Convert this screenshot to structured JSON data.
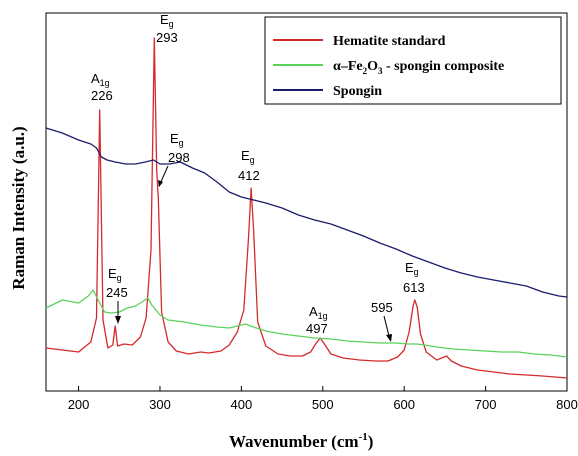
{
  "chart_data": {
    "type": "line",
    "xlabel": "Wavenumber (cm",
    "xlabel_sup": "-1",
    "xlabel_end": ")",
    "ylabel": "Raman Intensity (a.u.)",
    "xlim": [
      160,
      800
    ],
    "x_ticks": [
      "200",
      "300",
      "400",
      "500",
      "600",
      "700",
      "800"
    ],
    "legend_position": "top-right",
    "series": [
      {
        "name": "Hematite standard",
        "color": "#d42a2a",
        "points": [
          [
            160,
            348
          ],
          [
            200,
            352
          ],
          [
            215,
            342
          ],
          [
            222,
            318
          ],
          [
            226,
            110
          ],
          [
            230,
            320
          ],
          [
            236,
            348
          ],
          [
            242,
            345
          ],
          [
            245,
            326
          ],
          [
            248,
            346
          ],
          [
            256,
            344
          ],
          [
            266,
            345
          ],
          [
            276,
            337
          ],
          [
            283,
            318
          ],
          [
            289,
            250
          ],
          [
            293,
            38
          ],
          [
            296,
            170
          ],
          [
            298,
            198
          ],
          [
            302,
            312
          ],
          [
            310,
            342
          ],
          [
            320,
            351
          ],
          [
            335,
            354
          ],
          [
            350,
            352
          ],
          [
            360,
            353
          ],
          [
            375,
            351
          ],
          [
            385,
            345
          ],
          [
            395,
            332
          ],
          [
            403,
            310
          ],
          [
            409,
            235
          ],
          [
            412,
            188
          ],
          [
            415,
            230
          ],
          [
            420,
            322
          ],
          [
            430,
            346
          ],
          [
            445,
            354
          ],
          [
            460,
            356
          ],
          [
            475,
            356
          ],
          [
            485,
            352
          ],
          [
            492,
            343
          ],
          [
            497,
            338
          ],
          [
            502,
            344
          ],
          [
            510,
            354
          ],
          [
            525,
            358
          ],
          [
            545,
            360
          ],
          [
            565,
            361
          ],
          [
            580,
            361
          ],
          [
            592,
            357
          ],
          [
            600,
            350
          ],
          [
            606,
            332
          ],
          [
            611,
            306
          ],
          [
            613,
            300
          ],
          [
            616,
            307
          ],
          [
            620,
            334
          ],
          [
            627,
            352
          ],
          [
            640,
            360
          ],
          [
            652,
            356
          ],
          [
            658,
            361
          ],
          [
            670,
            366
          ],
          [
            690,
            370
          ],
          [
            710,
            372
          ],
          [
            730,
            374
          ],
          [
            750,
            375
          ],
          [
            770,
            376
          ],
          [
            800,
            378
          ]
        ]
      },
      {
        "name": "α–Fe2O3 - spongin composite",
        "name_parts": [
          "α–Fe",
          "2",
          "O",
          "3",
          " - spongin composite"
        ],
        "color": "#5bd25b",
        "points": [
          [
            160,
            308
          ],
          [
            180,
            300
          ],
          [
            200,
            303
          ],
          [
            212,
            296
          ],
          [
            218,
            290
          ],
          [
            224,
            300
          ],
          [
            232,
            312
          ],
          [
            240,
            313
          ],
          [
            250,
            312
          ],
          [
            260,
            308
          ],
          [
            270,
            306
          ],
          [
            278,
            302
          ],
          [
            285,
            298
          ],
          [
            290,
            305
          ],
          [
            300,
            315
          ],
          [
            310,
            320
          ],
          [
            330,
            322
          ],
          [
            350,
            325
          ],
          [
            370,
            327
          ],
          [
            385,
            328
          ],
          [
            395,
            326
          ],
          [
            405,
            324
          ],
          [
            415,
            327
          ],
          [
            430,
            331
          ],
          [
            450,
            334
          ],
          [
            470,
            336
          ],
          [
            490,
            338
          ],
          [
            510,
            339
          ],
          [
            530,
            341
          ],
          [
            550,
            342
          ],
          [
            570,
            343
          ],
          [
            590,
            343
          ],
          [
            605,
            344
          ],
          [
            615,
            344
          ],
          [
            625,
            345
          ],
          [
            640,
            347
          ],
          [
            660,
            349
          ],
          [
            680,
            350
          ],
          [
            700,
            351
          ],
          [
            720,
            352
          ],
          [
            740,
            352
          ],
          [
            760,
            354
          ],
          [
            780,
            355
          ],
          [
            800,
            357
          ]
        ]
      },
      {
        "name": "Spongin",
        "color": "#1c1c6e",
        "points": [
          [
            160,
            128
          ],
          [
            180,
            133
          ],
          [
            200,
            140
          ],
          [
            215,
            144
          ],
          [
            222,
            148
          ],
          [
            228,
            157
          ],
          [
            235,
            160
          ],
          [
            245,
            162
          ],
          [
            258,
            164
          ],
          [
            270,
            164
          ],
          [
            282,
            162
          ],
          [
            292,
            160
          ],
          [
            300,
            164
          ],
          [
            312,
            164
          ],
          [
            325,
            162
          ],
          [
            340,
            168
          ],
          [
            355,
            173
          ],
          [
            370,
            182
          ],
          [
            385,
            192
          ],
          [
            400,
            197
          ],
          [
            415,
            200
          ],
          [
            430,
            203
          ],
          [
            450,
            208
          ],
          [
            470,
            215
          ],
          [
            490,
            220
          ],
          [
            510,
            224
          ],
          [
            530,
            230
          ],
          [
            550,
            236
          ],
          [
            570,
            243
          ],
          [
            590,
            249
          ],
          [
            610,
            256
          ],
          [
            630,
            262
          ],
          [
            650,
            268
          ],
          [
            670,
            273
          ],
          [
            690,
            277
          ],
          [
            710,
            280
          ],
          [
            730,
            283
          ],
          [
            750,
            286
          ],
          [
            770,
            292
          ],
          [
            790,
            296
          ],
          [
            800,
            297
          ]
        ]
      }
    ],
    "annotations": [
      {
        "label": "A",
        "sub": "1g",
        "value": "226",
        "x": 226
      },
      {
        "label": "E",
        "sub": "g",
        "value": "293",
        "x": 293
      },
      {
        "label": "E",
        "sub": "g",
        "value": "298",
        "x": 298
      },
      {
        "label": "E",
        "sub": "g",
        "value": "412",
        "x": 412
      },
      {
        "label": "E",
        "sub": "g",
        "value": "245",
        "x": 245
      },
      {
        "label": "A",
        "sub": "1g",
        "value": "497",
        "x": 497
      },
      {
        "value": "595",
        "x": 595
      },
      {
        "label": "E",
        "sub": "g",
        "value": "613",
        "x": 613
      }
    ]
  }
}
